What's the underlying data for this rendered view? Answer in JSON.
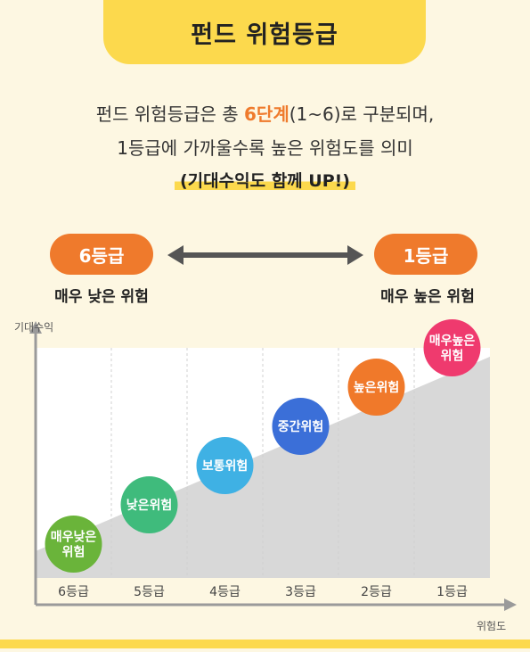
{
  "title": "펀드 위험등급",
  "intro": {
    "line1_pre": "펀드 위험등급은 총 ",
    "line1_accent": "6단계",
    "line1_post": "(1~6)로 구분되며,",
    "line2": "1등급에 가까울수록 높은 위험도를 의미",
    "highlight": "(기대수익도 함께 UP!)"
  },
  "scale": {
    "left_pill": "6등급",
    "left_caption": "매우 낮은 위험",
    "right_pill": "1등급",
    "right_caption": "매우 높은 위험"
  },
  "chart": {
    "y_label": "기대수익",
    "x_label": "위험도",
    "colors": {
      "orange": "#ef7a2c",
      "yellow": "#fcd94d",
      "cream": "#fdf7e2"
    },
    "grades": [
      {
        "label": "6등급",
        "risk": "매우낮은\n위험",
        "color": "#6ab43a",
        "level": 1
      },
      {
        "label": "5등급",
        "risk": "낮은위험",
        "color": "#3fbb7c",
        "level": 2
      },
      {
        "label": "4등급",
        "risk": "보통위험",
        "color": "#3fb1e4",
        "level": 3
      },
      {
        "label": "3등급",
        "risk": "중간위험",
        "color": "#3b6fd8",
        "level": 4
      },
      {
        "label": "2등급",
        "risk": "높은위험",
        "color": "#f0792a",
        "level": 5
      },
      {
        "label": "1등급",
        "risk": "매우높은\n위험",
        "color": "#ef3a6e",
        "level": 6
      }
    ]
  }
}
